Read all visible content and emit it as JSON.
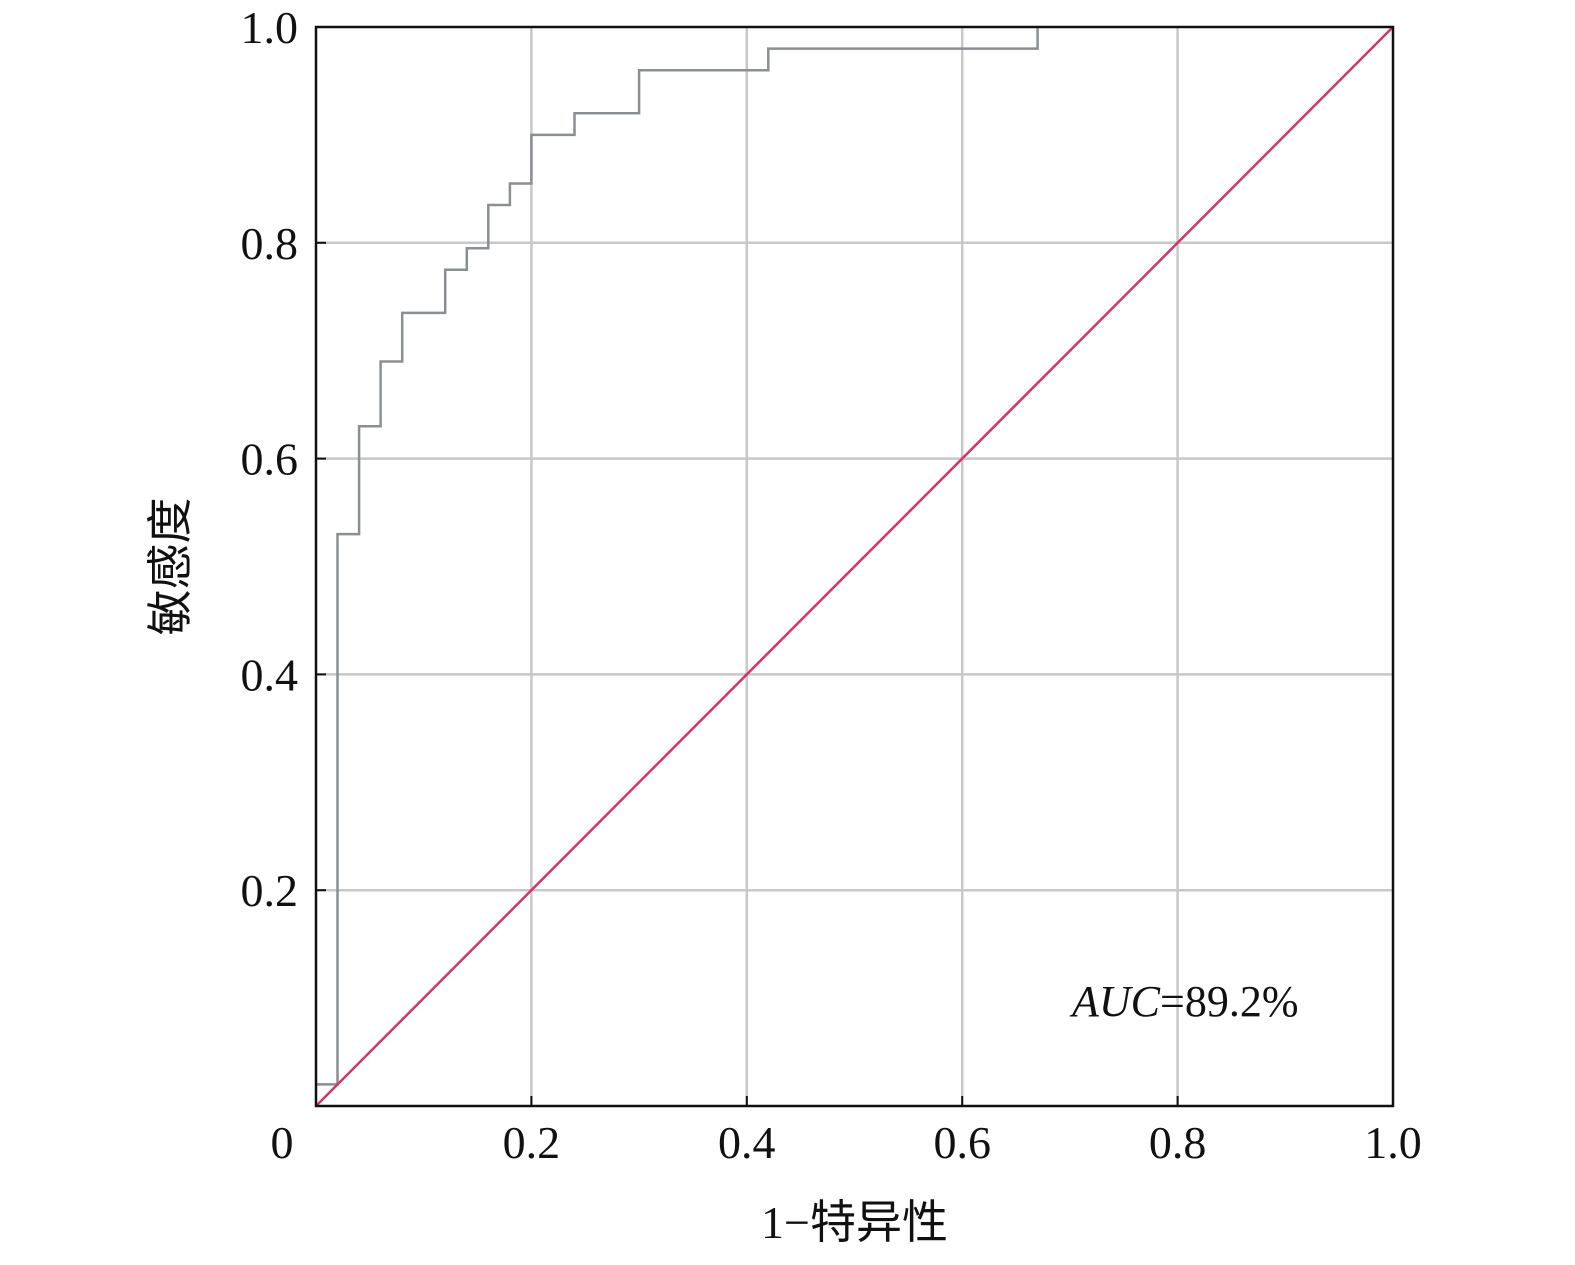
{
  "chart_data": {
    "type": "line",
    "title": "",
    "xlabel": "1−特异性",
    "ylabel": "敏感度",
    "xlim": [
      0,
      1
    ],
    "ylim": [
      0,
      1
    ],
    "x_ticks": [
      0,
      0.2,
      0.4,
      0.6,
      0.8,
      1.0
    ],
    "x_tick_labels": [
      "0",
      "0.2",
      "0.4",
      "0.6",
      "0.8",
      "1.0"
    ],
    "y_ticks": [
      0.2,
      0.4,
      0.6,
      0.8,
      1.0
    ],
    "y_tick_labels": [
      "0.2",
      "0.4",
      "0.6",
      "0.8",
      "1.0"
    ],
    "grid": true,
    "annotation": {
      "prefix": "AUC",
      "rest": "=89.2%"
    },
    "series": [
      {
        "role": "roc",
        "color": "#8a8f94",
        "step": true,
        "points": [
          [
            0.0,
            0.02
          ],
          [
            0.02,
            0.02
          ],
          [
            0.02,
            0.53
          ],
          [
            0.04,
            0.53
          ],
          [
            0.04,
            0.63
          ],
          [
            0.06,
            0.63
          ],
          [
            0.06,
            0.69
          ],
          [
            0.08,
            0.69
          ],
          [
            0.08,
            0.735
          ],
          [
            0.12,
            0.735
          ],
          [
            0.12,
            0.775
          ],
          [
            0.14,
            0.775
          ],
          [
            0.14,
            0.795
          ],
          [
            0.16,
            0.795
          ],
          [
            0.16,
            0.835
          ],
          [
            0.18,
            0.835
          ],
          [
            0.18,
            0.855
          ],
          [
            0.2,
            0.855
          ],
          [
            0.2,
            0.9
          ],
          [
            0.24,
            0.9
          ],
          [
            0.24,
            0.92
          ],
          [
            0.3,
            0.92
          ],
          [
            0.3,
            0.96
          ],
          [
            0.42,
            0.96
          ],
          [
            0.42,
            0.98
          ],
          [
            0.67,
            0.98
          ],
          [
            0.67,
            1.0
          ]
        ]
      },
      {
        "role": "reference",
        "color": "#d6336c",
        "step": false,
        "points": [
          [
            0,
            0
          ],
          [
            1,
            1
          ]
        ]
      }
    ]
  }
}
